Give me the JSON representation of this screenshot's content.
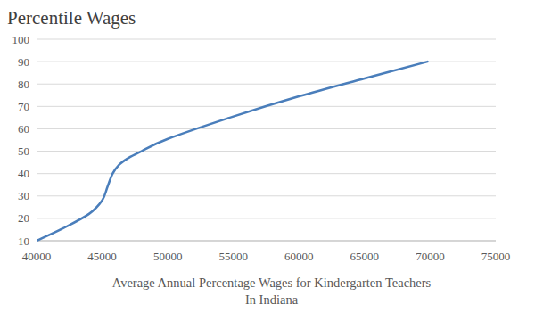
{
  "chart_data": {
    "type": "line",
    "title": "Percentile Wages",
    "x_label": "Average Annual Percentage Wages for Kindergarten Teachers\nIn Indiana",
    "x": [
      40000,
      42000,
      44000,
      45000,
      45400,
      45800,
      46300,
      47000,
      48000,
      50000,
      55000,
      60000,
      65000,
      69800
    ],
    "values": [
      10,
      15.5,
      22,
      28,
      34,
      40,
      44,
      47,
      50,
      55.5,
      65.5,
      74.5,
      82.5,
      90
    ],
    "color": "#4a7ebb",
    "line_style": "smooth",
    "xlim": [
      40000,
      75000
    ],
    "xticks": [
      40000,
      45000,
      50000,
      55000,
      60000,
      65000,
      70000,
      75000
    ],
    "ylim": [
      10,
      100
    ],
    "yticks": [
      10,
      20,
      30,
      40,
      50,
      60,
      70,
      80,
      90,
      100
    ],
    "grid": true
  }
}
